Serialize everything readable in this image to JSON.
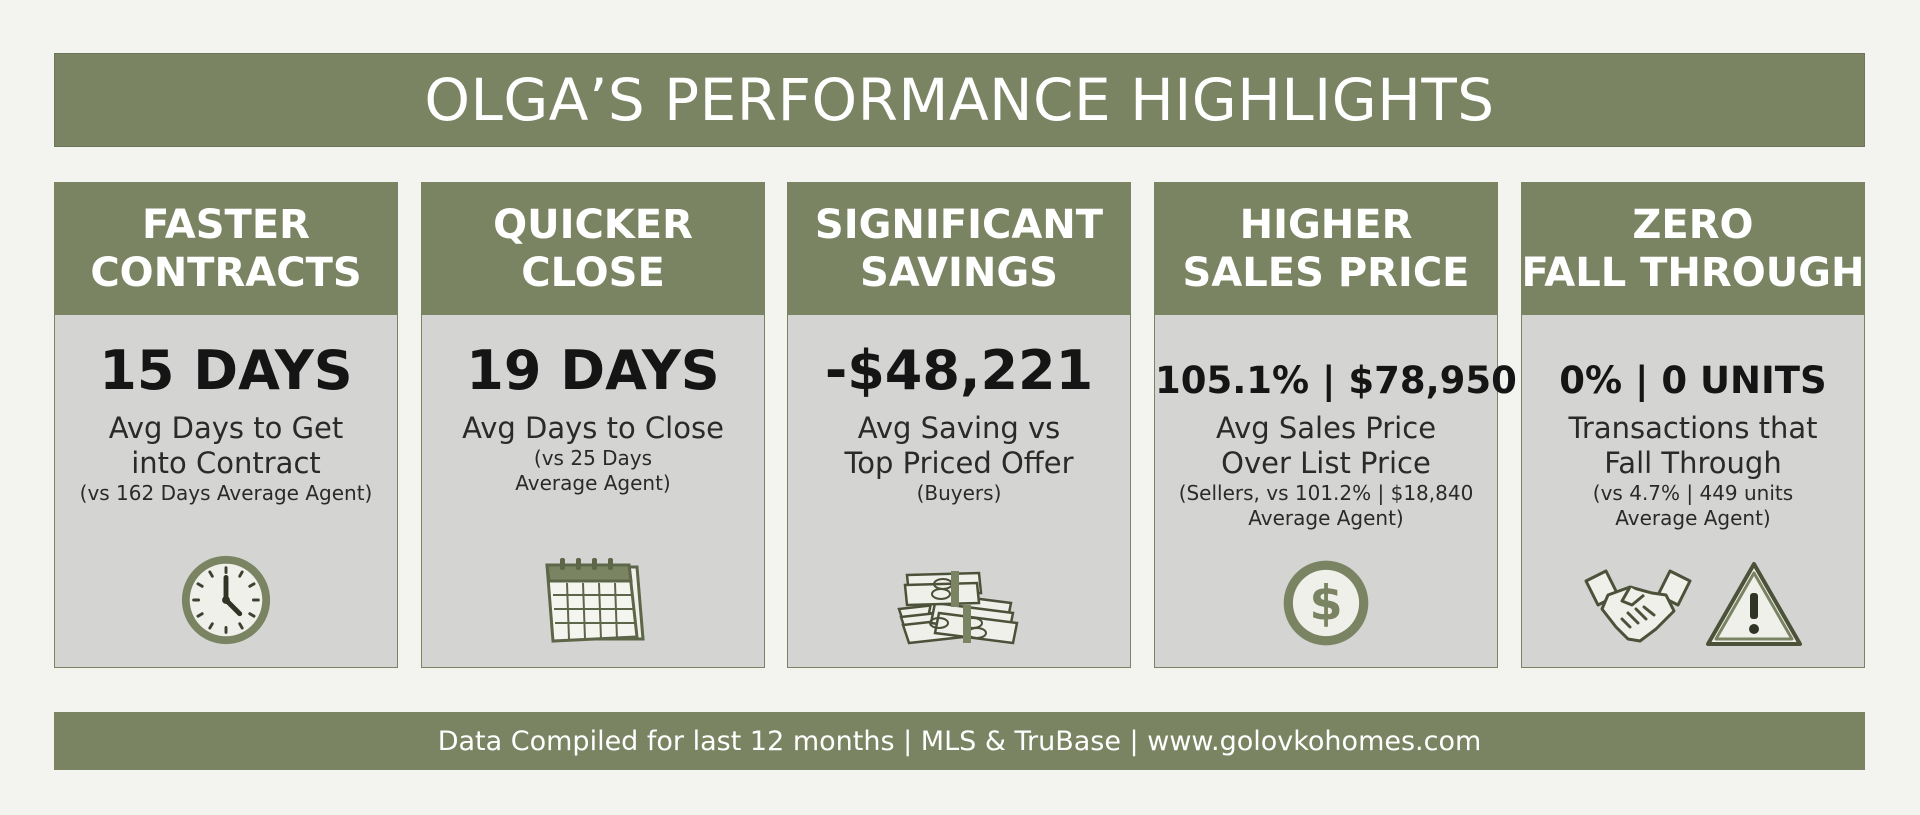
{
  "banner": {
    "title": "OLGA’S PERFORMANCE HIGHLIGHTS"
  },
  "theme": {
    "accent": "#7a8462",
    "panel": "#d4d4d2",
    "background": "#f3f3f0"
  },
  "cards": [
    {
      "title_lines": [
        "FASTER",
        "CONTRACTS"
      ],
      "value": "15 DAYS",
      "desc_lines": [
        "Avg Days to Get",
        "into Contract"
      ],
      "note_lines": [
        "(vs 162 Days Average Agent)"
      ],
      "icons": [
        "clock-icon"
      ]
    },
    {
      "title_lines": [
        "QUICKER",
        "CLOSE"
      ],
      "value": "19 DAYS",
      "desc_lines": [
        "Avg Days to Close"
      ],
      "note_lines": [
        "(vs 25 Days",
        "Average Agent)"
      ],
      "icons": [
        "calendar-icon"
      ]
    },
    {
      "title_lines": [
        "SIGNIFICANT",
        "SAVINGS"
      ],
      "value": "-$48,221",
      "desc_lines": [
        "Avg Saving vs",
        "Top Priced Offer"
      ],
      "note_lines": [
        "(Buyers)"
      ],
      "icons": [
        "money-stack-icon"
      ]
    },
    {
      "title_lines": [
        "HIGHER",
        "SALES PRICE"
      ],
      "value": "105.1% | $78,950",
      "desc_lines": [
        "Avg Sales Price",
        "Over List Price"
      ],
      "note_lines": [
        "(Sellers, vs 101.2% | $18,840",
        "Average Agent)"
      ],
      "icons": [
        "dollar-coin-icon"
      ]
    },
    {
      "title_lines": [
        "ZERO",
        "FALL THROUGH"
      ],
      "value": "0% | 0 UNITS",
      "desc_lines": [
        "Transactions that",
        "Fall Through"
      ],
      "note_lines": [
        "(vs 4.7% | 449 units",
        "Average Agent)"
      ],
      "icons": [
        "handshake-icon",
        "warning-icon"
      ]
    }
  ],
  "footer": {
    "text": "Data Compiled for last 12 months  |  MLS & TruBase  |  www.golovkohomes.com"
  }
}
